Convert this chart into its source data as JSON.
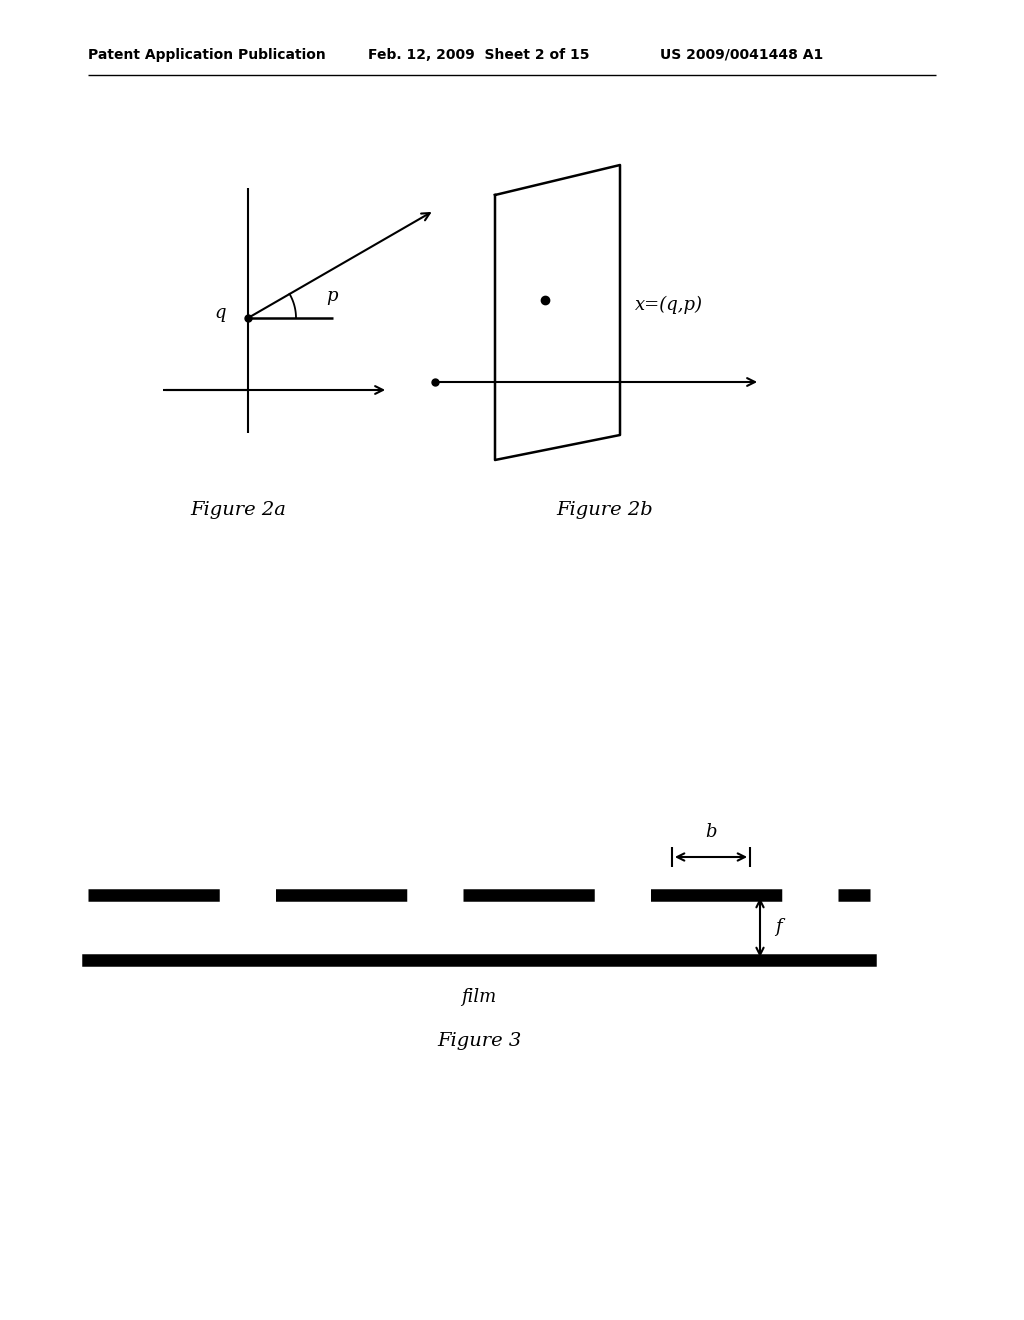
{
  "bg_color": "#ffffff",
  "header_left": "Patent Application Publication",
  "header_mid": "Feb. 12, 2009  Sheet 2 of 15",
  "header_right": "US 2009/0041448 A1",
  "fig2a_label": "Figure 2a",
  "fig2b_label": "Figure 2b",
  "fig3_label": "Figure 3",
  "fig3_film_label": "film",
  "fig3_b_label": "b",
  "fig3_f_label": "f",
  "fig2b_x_label": "x=(q,p)",
  "fig2a_q_label": "q",
  "fig2a_p_label": "p"
}
